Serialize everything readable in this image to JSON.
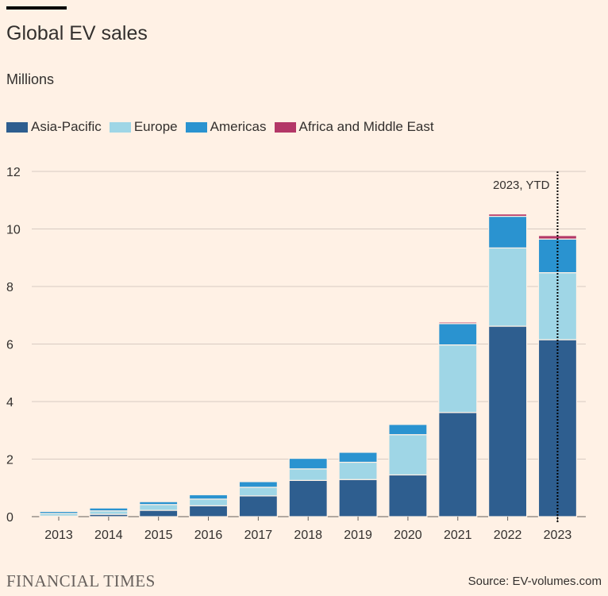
{
  "title": "Global EV sales",
  "subtitle": "Millions",
  "brand": "FINANCIAL TIMES",
  "source": "Source: EV-volumes.com",
  "annotation": "2023, YTD",
  "legend": [
    {
      "label": "Asia-Pacific",
      "color": "#2e5e8f"
    },
    {
      "label": "Europe",
      "color": "#9fd6e6"
    },
    {
      "label": "Americas",
      "color": "#2a93d0"
    },
    {
      "label": "Africa and Middle East",
      "color": "#b33767"
    }
  ],
  "chart_data": {
    "type": "bar",
    "stacked": true,
    "categories": [
      "2013",
      "2014",
      "2015",
      "2016",
      "2017",
      "2018",
      "2019",
      "2020",
      "2021",
      "2022",
      "2023"
    ],
    "series": [
      {
        "name": "Asia-Pacific",
        "color": "#2e5e8f",
        "values": [
          0.02,
          0.08,
          0.22,
          0.38,
          0.72,
          1.26,
          1.29,
          1.45,
          3.62,
          6.62,
          6.15
        ]
      },
      {
        "name": "Europe",
        "color": "#9fd6e6",
        "values": [
          0.09,
          0.12,
          0.2,
          0.23,
          0.3,
          0.4,
          0.6,
          1.4,
          2.35,
          2.72,
          2.33
        ]
      },
      {
        "name": "Americas",
        "color": "#2a93d0",
        "values": [
          0.07,
          0.1,
          0.1,
          0.15,
          0.2,
          0.37,
          0.35,
          0.36,
          0.74,
          1.1,
          1.17
        ]
      },
      {
        "name": "Africa and Middle East",
        "color": "#b33767",
        "values": [
          0.0,
          0.0,
          0.0,
          0.0,
          0.01,
          0.01,
          0.01,
          0.01,
          0.05,
          0.08,
          0.12
        ]
      }
    ],
    "ylim": [
      0,
      12
    ],
    "yticks": [
      0,
      2,
      4,
      6,
      8,
      10,
      12
    ],
    "grid": true,
    "legend_position": "top-left"
  }
}
